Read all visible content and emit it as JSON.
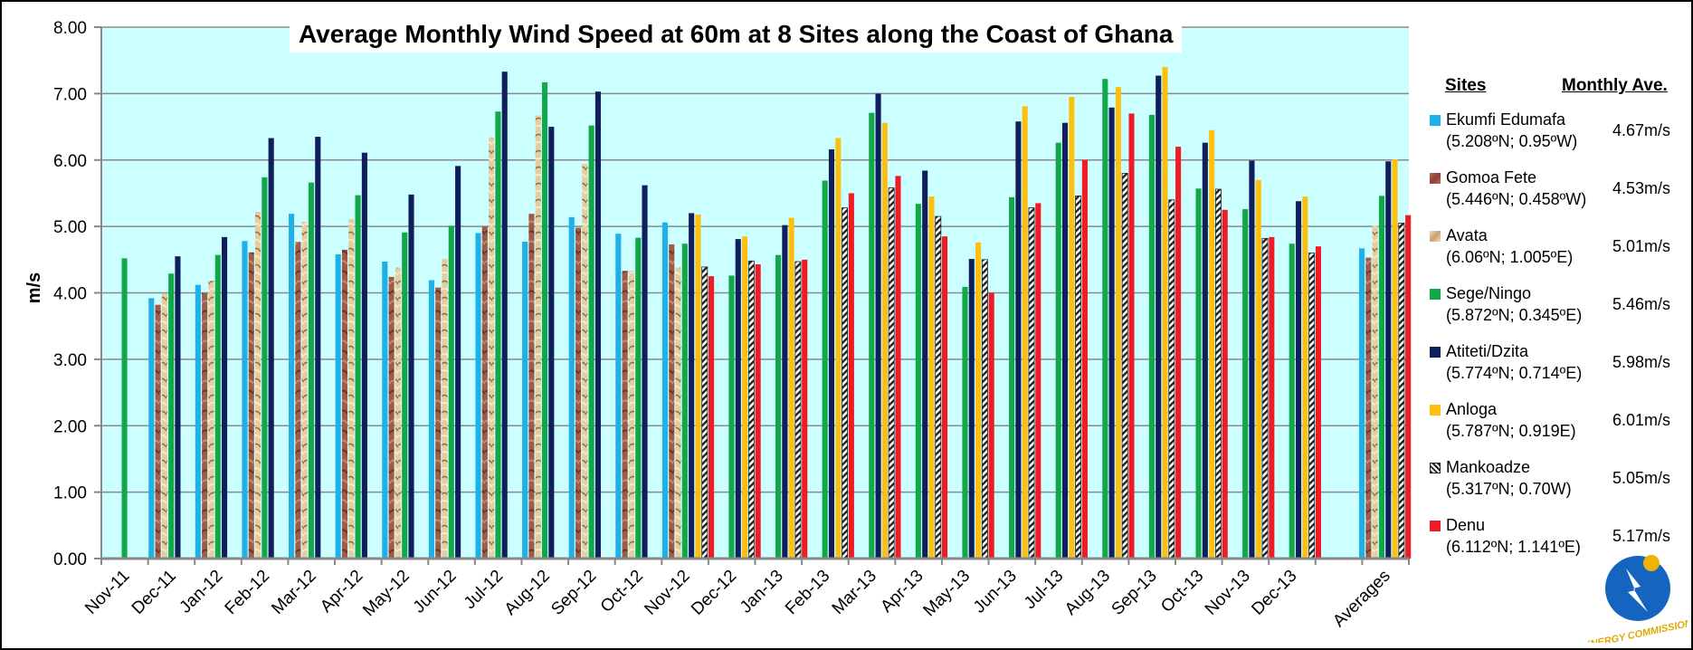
{
  "chart_data": {
    "type": "bar",
    "title": "Average Monthly Wind Speed at 60m at 8 Sites along the Coast of Ghana",
    "ylabel": "m/s",
    "xlabel": "",
    "ylim": [
      0,
      8
    ],
    "yticks": [
      "0.00",
      "1.00",
      "2.00",
      "3.00",
      "4.00",
      "5.00",
      "6.00",
      "7.00",
      "8.00"
    ],
    "grid": true,
    "legend_position": "right",
    "categories": [
      "Nov-11",
      "Dec-11",
      "Jan-12",
      "Feb-12",
      "Mar-12",
      "Apr-12",
      "May-12",
      "Jun-12",
      "Jul-12",
      "Aug-12",
      "Sep-12",
      "Oct-12",
      "Nov-12",
      "Dec-12",
      "Jan-13",
      "Feb-13",
      "Mar-13",
      "Apr-13",
      "May-13",
      "Jun-13",
      "Jul-13",
      "Aug-13",
      "Sep-13",
      "Oct-13",
      "Nov-13",
      "Dec-13",
      "",
      "Averages"
    ],
    "series": [
      {
        "name": "Ekumfi Edumafa",
        "coords": "(5.208ºN; 0.95ºW)",
        "average": "4.67m/s",
        "color": "#1fb0e8",
        "pattern": "solid",
        "values": [
          null,
          3.92,
          4.12,
          4.78,
          5.19,
          4.58,
          4.47,
          4.19,
          4.9,
          4.77,
          5.14,
          4.89,
          5.06,
          null,
          null,
          null,
          null,
          null,
          null,
          null,
          null,
          null,
          null,
          null,
          null,
          null,
          null,
          4.67
        ]
      },
      {
        "name": "Gomoa Fete",
        "coords": "(5.446ºN; 0.458ºW)",
        "average": "4.53m/s",
        "color": "#a8463f",
        "pattern": "solid",
        "values": [
          null,
          3.82,
          4.0,
          4.61,
          4.77,
          4.65,
          4.24,
          4.08,
          5.0,
          5.19,
          4.98,
          4.33,
          4.73,
          null,
          null,
          null,
          null,
          null,
          null,
          null,
          null,
          null,
          null,
          null,
          null,
          null,
          null,
          4.53
        ]
      },
      {
        "name": "Avata",
        "coords": "(6.06ºN; 1.005ºE)",
        "average": "5.01m/s",
        "color": "#e8cfa4",
        "pattern": "texture",
        "values": [
          null,
          3.99,
          4.18,
          5.22,
          5.07,
          5.11,
          4.38,
          4.51,
          6.34,
          6.67,
          5.94,
          4.33,
          4.38,
          null,
          null,
          null,
          null,
          null,
          null,
          null,
          null,
          null,
          null,
          null,
          null,
          null,
          null,
          5.01
        ]
      },
      {
        "name": "Sege/Ningo",
        "coords": "(5.872ºN; 0.345ºE)",
        "average": "5.46m/s",
        "color": "#12a84a",
        "pattern": "solid",
        "values": [
          4.52,
          4.29,
          4.57,
          5.74,
          5.66,
          5.47,
          4.91,
          5.01,
          6.73,
          7.17,
          6.52,
          4.83,
          4.74,
          4.26,
          4.57,
          5.69,
          6.71,
          5.34,
          4.09,
          5.44,
          6.26,
          7.22,
          6.68,
          5.57,
          5.26,
          4.74,
          null,
          5.46
        ]
      },
      {
        "name": "Atiteti/Dzita",
        "coords": "(5.774ºN; 0.714ºE)",
        "average": "5.98m/s",
        "color": "#0f1f5c",
        "pattern": "solid",
        "values": [
          null,
          4.55,
          4.84,
          6.33,
          6.35,
          6.11,
          5.48,
          5.91,
          7.33,
          6.5,
          7.03,
          5.62,
          5.2,
          4.81,
          5.02,
          6.16,
          7.0,
          5.84,
          4.51,
          6.58,
          6.56,
          6.79,
          7.27,
          6.26,
          5.99,
          5.38,
          null,
          5.98
        ]
      },
      {
        "name": "Anloga",
        "coords": "(5.787ºN; 0.919E)",
        "average": "6.01m/s",
        "color": "#fdc012",
        "pattern": "solid",
        "values": [
          null,
          null,
          null,
          null,
          null,
          null,
          null,
          null,
          null,
          null,
          null,
          null,
          5.18,
          4.85,
          5.13,
          6.33,
          6.56,
          5.45,
          4.76,
          6.81,
          6.95,
          7.1,
          7.4,
          6.45,
          5.7,
          5.45,
          null,
          6.01
        ]
      },
      {
        "name": "Mankoadze",
        "coords": "(5.317ºN; 0.70W)",
        "average": "5.05m/s",
        "color": "#333333",
        "pattern": "hatch",
        "values": [
          null,
          null,
          null,
          null,
          null,
          null,
          null,
          null,
          null,
          null,
          null,
          null,
          4.39,
          4.48,
          4.47,
          5.28,
          5.58,
          5.15,
          4.5,
          5.28,
          5.46,
          5.8,
          5.4,
          5.56,
          4.82,
          4.6,
          null,
          5.05
        ]
      },
      {
        "name": "Denu",
        "coords": "(6.112ºN; 1.141ºE)",
        "average": "5.17m/s",
        "color": "#ee1c24",
        "pattern": "solid",
        "values": [
          null,
          null,
          null,
          null,
          null,
          null,
          null,
          null,
          null,
          null,
          null,
          null,
          4.25,
          4.43,
          4.5,
          5.5,
          5.76,
          4.85,
          4.0,
          5.35,
          6.0,
          6.7,
          6.2,
          5.25,
          4.84,
          4.7,
          null,
          5.17
        ]
      }
    ]
  },
  "legend": {
    "header_sites": "Sites",
    "header_average": "Monthly Ave."
  },
  "logo": {
    "text": "ENERGY COMMISSION",
    "color_primary": "#1565c0",
    "color_text": "#f0b400"
  },
  "colors": {
    "plot_background": "#ccffff",
    "gridline": "#8a8a8a",
    "axis": "#888888"
  }
}
